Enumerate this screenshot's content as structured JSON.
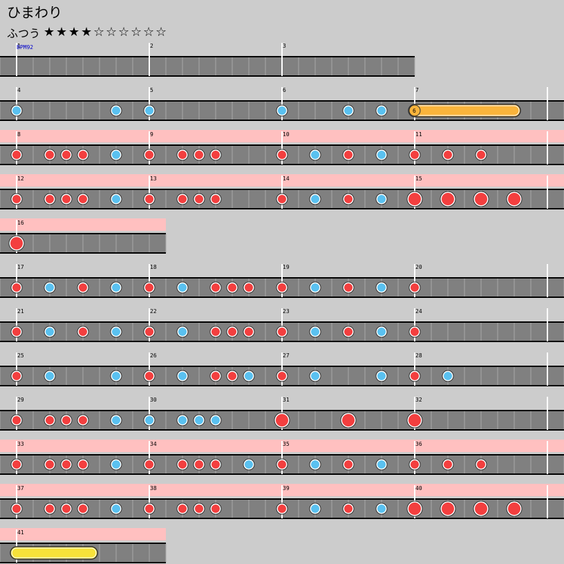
{
  "song": {
    "title": "ひまわり",
    "difficulty_label": "ふつう",
    "stars_filled": 4,
    "stars_total": 10,
    "star_filled_glyph": "★",
    "star_empty_glyph": "☆"
  },
  "bpm_label": "BPM92",
  "colors": {
    "background": "#cccccc",
    "lane": "#808080",
    "lane_lines": "#000000",
    "gogo_band": "#ffc0c0",
    "don": "#f33f3f",
    "ka": "#5ac1f0",
    "drumroll": "#f9b43c",
    "balloon_roll": "#f7e23a",
    "bpm_text": "#0000cc"
  },
  "chart": {
    "beats_per_measure": 4,
    "measures_per_row": 4,
    "rows": [
      {
        "gogo": false,
        "measures": [
          1,
          2,
          3
        ]
      },
      {
        "gogo": false,
        "measures": [
          4,
          5,
          6,
          7
        ]
      },
      {
        "gogo": true,
        "measures": [
          8,
          9,
          10,
          11
        ]
      },
      {
        "gogo": true,
        "measures": [
          12,
          13,
          14,
          15
        ]
      },
      {
        "gogo": true,
        "measures": [
          16
        ]
      },
      {
        "gogo": false,
        "measures": [
          17,
          18,
          19,
          20
        ]
      },
      {
        "gogo": false,
        "measures": [
          21,
          22,
          23,
          24
        ]
      },
      {
        "gogo": false,
        "measures": [
          25,
          26,
          27,
          28
        ]
      },
      {
        "gogo": false,
        "measures": [
          29,
          30,
          31,
          32
        ]
      },
      {
        "gogo": true,
        "measures": [
          33,
          34,
          35,
          36
        ]
      },
      {
        "gogo": true,
        "measures": [
          37,
          38,
          39,
          40
        ]
      },
      {
        "gogo": true,
        "measures": [
          41
        ]
      }
    ],
    "notes": [
      {
        "m": 4,
        "b": 0,
        "t": "ka"
      },
      {
        "m": 4,
        "b": 3,
        "t": "ka"
      },
      {
        "m": 5,
        "b": 0,
        "t": "ka"
      },
      {
        "m": 6,
        "b": 0,
        "t": "ka"
      },
      {
        "m": 6,
        "b": 2,
        "t": "ka"
      },
      {
        "m": 6,
        "b": 3,
        "t": "ka"
      },
      {
        "m": 7,
        "b": 0,
        "t": "roll",
        "len": 3,
        "label": "6"
      },
      {
        "m": 8,
        "b": 0,
        "t": "don"
      },
      {
        "m": 8,
        "b": 1,
        "t": "don"
      },
      {
        "m": 8,
        "b": 1.5,
        "t": "don"
      },
      {
        "m": 8,
        "b": 2,
        "t": "don"
      },
      {
        "m": 8,
        "b": 3,
        "t": "ka"
      },
      {
        "m": 9,
        "b": 0,
        "t": "don"
      },
      {
        "m": 9,
        "b": 1,
        "t": "don"
      },
      {
        "m": 9,
        "b": 1.5,
        "t": "don"
      },
      {
        "m": 9,
        "b": 2,
        "t": "don"
      },
      {
        "m": 10,
        "b": 0,
        "t": "don"
      },
      {
        "m": 10,
        "b": 1,
        "t": "ka"
      },
      {
        "m": 10,
        "b": 2,
        "t": "don"
      },
      {
        "m": 10,
        "b": 3,
        "t": "ka"
      },
      {
        "m": 11,
        "b": 0,
        "t": "don"
      },
      {
        "m": 11,
        "b": 1,
        "t": "don"
      },
      {
        "m": 11,
        "b": 2,
        "t": "don"
      },
      {
        "m": 12,
        "b": 0,
        "t": "don"
      },
      {
        "m": 12,
        "b": 1,
        "t": "don"
      },
      {
        "m": 12,
        "b": 1.5,
        "t": "don"
      },
      {
        "m": 12,
        "b": 2,
        "t": "don"
      },
      {
        "m": 12,
        "b": 3,
        "t": "ka"
      },
      {
        "m": 13,
        "b": 0,
        "t": "don"
      },
      {
        "m": 13,
        "b": 1,
        "t": "don"
      },
      {
        "m": 13,
        "b": 1.5,
        "t": "don"
      },
      {
        "m": 13,
        "b": 2,
        "t": "don"
      },
      {
        "m": 14,
        "b": 0,
        "t": "don"
      },
      {
        "m": 14,
        "b": 1,
        "t": "ka"
      },
      {
        "m": 14,
        "b": 2,
        "t": "don"
      },
      {
        "m": 14,
        "b": 3,
        "t": "ka"
      },
      {
        "m": 15,
        "b": 0,
        "t": "DON"
      },
      {
        "m": 15,
        "b": 1,
        "t": "DON"
      },
      {
        "m": 15,
        "b": 2,
        "t": "DON"
      },
      {
        "m": 15,
        "b": 3,
        "t": "DON"
      },
      {
        "m": 16,
        "b": 0,
        "t": "DON"
      },
      {
        "m": 17,
        "b": 0,
        "t": "don"
      },
      {
        "m": 17,
        "b": 1,
        "t": "ka"
      },
      {
        "m": 17,
        "b": 2,
        "t": "don"
      },
      {
        "m": 17,
        "b": 3,
        "t": "ka"
      },
      {
        "m": 18,
        "b": 0,
        "t": "don"
      },
      {
        "m": 18,
        "b": 1,
        "t": "ka"
      },
      {
        "m": 18,
        "b": 2,
        "t": "don"
      },
      {
        "m": 18,
        "b": 2.5,
        "t": "don"
      },
      {
        "m": 18,
        "b": 3,
        "t": "don"
      },
      {
        "m": 19,
        "b": 0,
        "t": "don"
      },
      {
        "m": 19,
        "b": 1,
        "t": "ka"
      },
      {
        "m": 19,
        "b": 2,
        "t": "don"
      },
      {
        "m": 19,
        "b": 3,
        "t": "ka"
      },
      {
        "m": 20,
        "b": 0,
        "t": "don"
      },
      {
        "m": 21,
        "b": 0,
        "t": "don"
      },
      {
        "m": 21,
        "b": 1,
        "t": "ka"
      },
      {
        "m": 21,
        "b": 2,
        "t": "don"
      },
      {
        "m": 21,
        "b": 3,
        "t": "ka"
      },
      {
        "m": 22,
        "b": 0,
        "t": "don"
      },
      {
        "m": 22,
        "b": 1,
        "t": "ka"
      },
      {
        "m": 22,
        "b": 2,
        "t": "don"
      },
      {
        "m": 22,
        "b": 2.5,
        "t": "don"
      },
      {
        "m": 22,
        "b": 3,
        "t": "don"
      },
      {
        "m": 23,
        "b": 0,
        "t": "don"
      },
      {
        "m": 23,
        "b": 1,
        "t": "ka"
      },
      {
        "m": 23,
        "b": 2,
        "t": "don"
      },
      {
        "m": 23,
        "b": 3,
        "t": "ka"
      },
      {
        "m": 24,
        "b": 0,
        "t": "don"
      },
      {
        "m": 25,
        "b": 0,
        "t": "don"
      },
      {
        "m": 25,
        "b": 1,
        "t": "ka"
      },
      {
        "m": 25,
        "b": 3,
        "t": "ka"
      },
      {
        "m": 26,
        "b": 0,
        "t": "don"
      },
      {
        "m": 26,
        "b": 1,
        "t": "ka"
      },
      {
        "m": 26,
        "b": 2,
        "t": "don"
      },
      {
        "m": 26,
        "b": 2.5,
        "t": "don"
      },
      {
        "m": 26,
        "b": 3,
        "t": "ka"
      },
      {
        "m": 27,
        "b": 0,
        "t": "don"
      },
      {
        "m": 27,
        "b": 1,
        "t": "ka"
      },
      {
        "m": 27,
        "b": 3,
        "t": "ka"
      },
      {
        "m": 28,
        "b": 0,
        "t": "don"
      },
      {
        "m": 28,
        "b": 1,
        "t": "ka"
      },
      {
        "m": 29,
        "b": 0,
        "t": "don"
      },
      {
        "m": 29,
        "b": 1,
        "t": "don"
      },
      {
        "m": 29,
        "b": 1.5,
        "t": "don"
      },
      {
        "m": 29,
        "b": 2,
        "t": "don"
      },
      {
        "m": 29,
        "b": 3,
        "t": "ka"
      },
      {
        "m": 30,
        "b": 0,
        "t": "ka"
      },
      {
        "m": 30,
        "b": 1,
        "t": "ka"
      },
      {
        "m": 30,
        "b": 1.5,
        "t": "ka"
      },
      {
        "m": 30,
        "b": 2,
        "t": "ka"
      },
      {
        "m": 31,
        "b": 0,
        "t": "DON"
      },
      {
        "m": 31,
        "b": 2,
        "t": "DON"
      },
      {
        "m": 32,
        "b": 0,
        "t": "DON"
      },
      {
        "m": 33,
        "b": 0,
        "t": "don"
      },
      {
        "m": 33,
        "b": 1,
        "t": "don"
      },
      {
        "m": 33,
        "b": 1.5,
        "t": "don"
      },
      {
        "m": 33,
        "b": 2,
        "t": "don"
      },
      {
        "m": 33,
        "b": 3,
        "t": "ka"
      },
      {
        "m": 34,
        "b": 0,
        "t": "don"
      },
      {
        "m": 34,
        "b": 1,
        "t": "don"
      },
      {
        "m": 34,
        "b": 1.5,
        "t": "don"
      },
      {
        "m": 34,
        "b": 2,
        "t": "don"
      },
      {
        "m": 34,
        "b": 3,
        "t": "ka"
      },
      {
        "m": 35,
        "b": 0,
        "t": "don"
      },
      {
        "m": 35,
        "b": 1,
        "t": "ka"
      },
      {
        "m": 35,
        "b": 2,
        "t": "don"
      },
      {
        "m": 35,
        "b": 3,
        "t": "ka"
      },
      {
        "m": 36,
        "b": 0,
        "t": "don"
      },
      {
        "m": 36,
        "b": 1,
        "t": "don"
      },
      {
        "m": 36,
        "b": 2,
        "t": "don"
      },
      {
        "m": 37,
        "b": 0,
        "t": "don"
      },
      {
        "m": 37,
        "b": 1,
        "t": "don"
      },
      {
        "m": 37,
        "b": 1.5,
        "t": "don"
      },
      {
        "m": 37,
        "b": 2,
        "t": "don"
      },
      {
        "m": 37,
        "b": 3,
        "t": "ka"
      },
      {
        "m": 38,
        "b": 0,
        "t": "don"
      },
      {
        "m": 38,
        "b": 1,
        "t": "don"
      },
      {
        "m": 38,
        "b": 1.5,
        "t": "don"
      },
      {
        "m": 38,
        "b": 2,
        "t": "don"
      },
      {
        "m": 39,
        "b": 0,
        "t": "don"
      },
      {
        "m": 39,
        "b": 1,
        "t": "ka"
      },
      {
        "m": 39,
        "b": 2,
        "t": "don"
      },
      {
        "m": 39,
        "b": 3,
        "t": "ka"
      },
      {
        "m": 40,
        "b": 0,
        "t": "DON"
      },
      {
        "m": 40,
        "b": 1,
        "t": "DON"
      },
      {
        "m": 40,
        "b": 2,
        "t": "DON"
      },
      {
        "m": 40,
        "b": 3,
        "t": "DON"
      },
      {
        "m": 41,
        "b": 0,
        "t": "balloon",
        "len": 2.25
      }
    ]
  }
}
